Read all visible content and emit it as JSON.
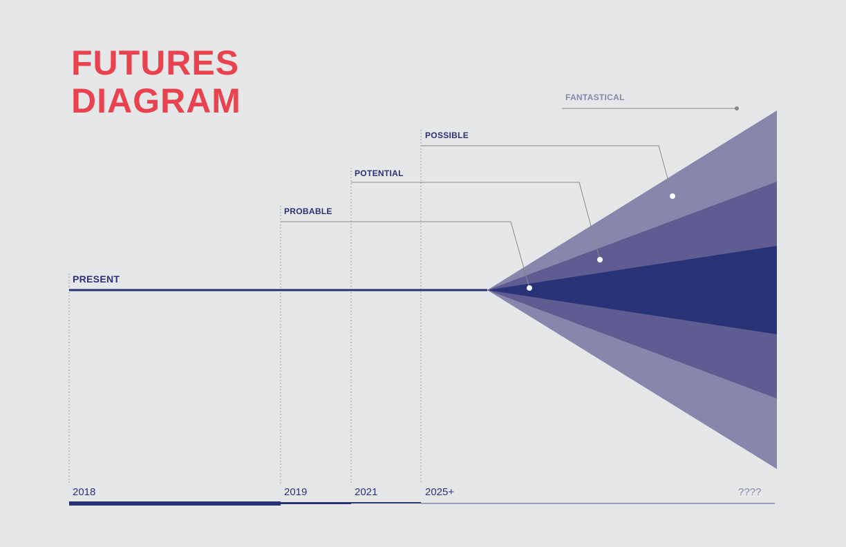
{
  "title": {
    "line1": "FUTURES",
    "line2": "DIAGRAM"
  },
  "labels": {
    "present": "PRESENT",
    "probable": "PROBABLE",
    "potential": "POTENTIAL",
    "possible": "POSSIBLE",
    "fantastical": "FANTASTICAL"
  },
  "timeline": [
    "2018",
    "2019",
    "2021",
    "2025+",
    "????"
  ],
  "colors": {
    "background": "#e6e7e8",
    "title": "#e8434f",
    "navy": "#283277",
    "cone_mid": "#5e5c90",
    "cone_outer": "#8886ac",
    "leader": "#888888"
  }
}
